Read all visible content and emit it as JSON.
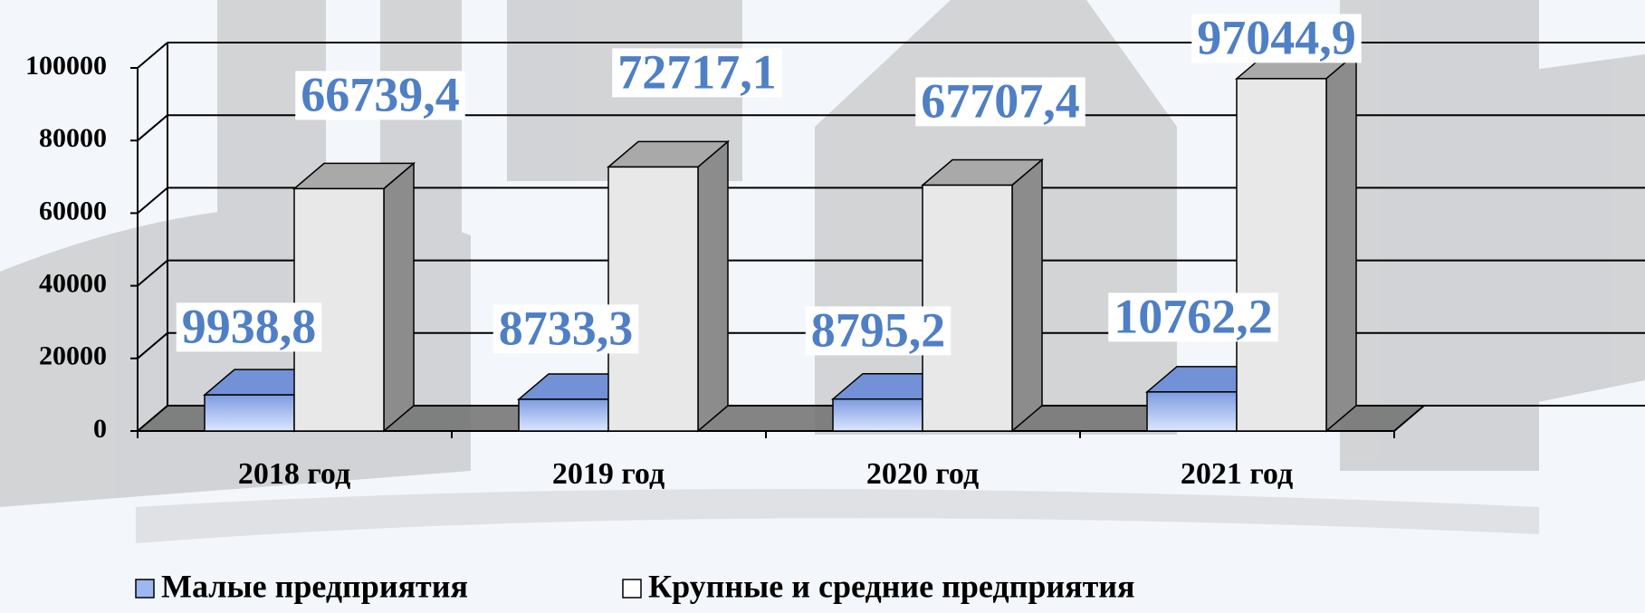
{
  "chart_data": {
    "type": "bar3d",
    "categories": [
      "2018 год",
      "2019 год",
      "2020 год",
      "2021 год"
    ],
    "series": [
      {
        "name": "Малые предприятия",
        "color": "#9db8ee",
        "values": [
          9938.8,
          8733.3,
          8795.2,
          10762.2
        ],
        "value_labels": [
          "9938,8",
          "8733,3",
          "8795,2",
          "10762,2"
        ]
      },
      {
        "name": "Крупные и средние предприятия",
        "color": "#e6e6e6",
        "values": [
          66739.4,
          72717.1,
          67707.4,
          97044.9
        ],
        "value_labels": [
          "66739,4",
          "72717,1",
          "67707,4",
          "97044,9"
        ]
      }
    ],
    "ylim": [
      0,
      100000
    ],
    "yticks": [
      0,
      20000,
      40000,
      60000,
      80000,
      100000
    ],
    "grid": true
  }
}
